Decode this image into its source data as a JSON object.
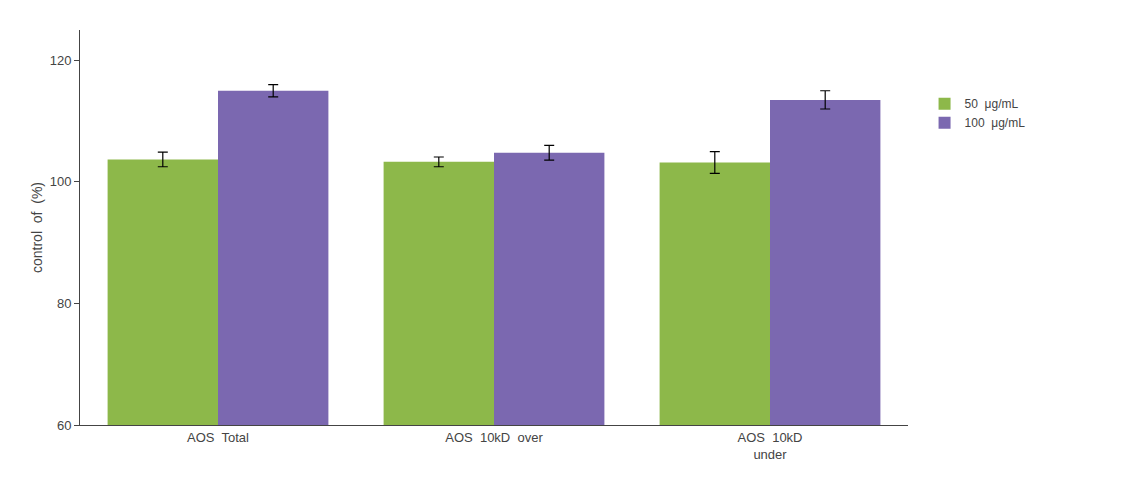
{
  "chart_data": {
    "type": "bar",
    "categories": [
      "AOS  Total",
      "AOS  10kD  over",
      "AOS  10kD\nunder"
    ],
    "series": [
      {
        "name": "50  μg/mL",
        "color": "#8db84a",
        "values": [
          103.7,
          103.3,
          103.2
        ],
        "errors": [
          1.2,
          0.8,
          1.8
        ]
      },
      {
        "name": "100  μg/mL",
        "color": "#7b68b0",
        "values": [
          115.0,
          104.8,
          113.5
        ],
        "errors": [
          1.0,
          1.2,
          1.5
        ]
      }
    ],
    "ylabel": "control  of  (%)",
    "ylim": [
      60,
      125
    ],
    "yticks": [
      60,
      80,
      100,
      120
    ],
    "grid": false,
    "legend": "right"
  }
}
